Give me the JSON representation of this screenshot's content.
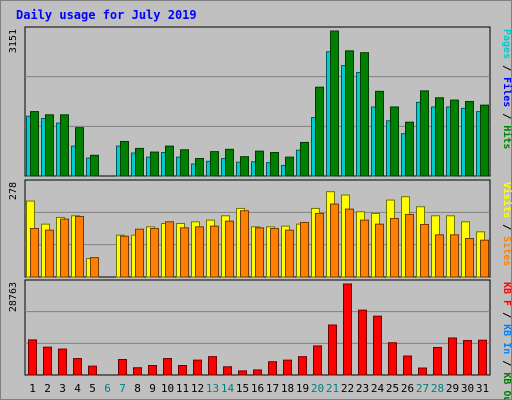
{
  "title": "Daily usage for July 2019",
  "chart_data": [
    {
      "type": "bar",
      "panel": "top",
      "ymax_label": "3151",
      "ylim": [
        0,
        3151
      ],
      "categories": [
        "1",
        "2",
        "3",
        "4",
        "5",
        "6",
        "7",
        "8",
        "9",
        "10",
        "11",
        "12",
        "13",
        "14",
        "15",
        "16",
        "17",
        "18",
        "19",
        "20",
        "21",
        "22",
        "23",
        "24",
        "25",
        "26",
        "27",
        "28",
        "29",
        "30",
        "31"
      ],
      "series": [
        {
          "name": "Pages",
          "color": "#00cccc",
          "values": [
            1300,
            1250,
            1150,
            650,
            390,
            null,
            650,
            500,
            410,
            510,
            410,
            260,
            320,
            380,
            300,
            310,
            290,
            230,
            560,
            1270,
            2700,
            2400,
            2250,
            1500,
            1200,
            920,
            1600,
            1500,
            1500,
            1470,
            1400
          ]
        },
        {
          "name": "Files",
          "color": "#0000ff",
          "values": [
            null,
            null,
            null,
            null,
            null,
            null,
            null,
            null,
            null,
            null,
            null,
            null,
            null,
            null,
            null,
            null,
            null,
            null,
            null,
            null,
            null,
            null,
            null,
            null,
            null,
            null,
            null,
            null,
            null,
            null,
            null
          ]
        },
        {
          "name": "Hits",
          "color": "#008000",
          "values": [
            1400,
            1330,
            1330,
            1050,
            450,
            null,
            750,
            600,
            520,
            650,
            570,
            380,
            530,
            580,
            420,
            540,
            510,
            410,
            730,
            1930,
            3151,
            2720,
            2680,
            1840,
            1500,
            1170,
            1850,
            1700,
            1650,
            1620,
            1540
          ]
        }
      ],
      "legend": [
        "Pages",
        "/",
        "Files",
        "/",
        "Hits"
      ],
      "legend_colors": [
        "#00cccc",
        "#000000",
        "#0000ff",
        "#000000",
        "#008000"
      ]
    },
    {
      "type": "bar",
      "panel": "middle",
      "ymax_label": "278",
      "ylim": [
        0,
        278
      ],
      "series": [
        {
          "name": "Visits",
          "color": "#ffff00",
          "values": [
            227,
            158,
            178,
            183,
            55,
            null,
            125,
            125,
            150,
            160,
            160,
            165,
            170,
            183,
            205,
            150,
            150,
            152,
            158,
            205,
            255,
            245,
            195,
            190,
            230,
            240,
            210,
            183,
            183,
            165,
            135
          ]
        },
        {
          "name": "Sites",
          "color": "#ff8000",
          "values": [
            145,
            140,
            173,
            181,
            58,
            null,
            122,
            143,
            145,
            165,
            147,
            150,
            152,
            167,
            198,
            147,
            145,
            140,
            163,
            190,
            218,
            203,
            170,
            158,
            175,
            187,
            157,
            126,
            126,
            115,
            110
          ]
        }
      ],
      "legend": [
        "Visits",
        "/",
        "Sites"
      ],
      "legend_colors": [
        "#ffff00",
        "#000000",
        "#ff8000"
      ]
    },
    {
      "type": "bar",
      "panel": "bottom",
      "ymax_label": "28763",
      "ylim": [
        0,
        28763
      ],
      "series": [
        {
          "name": "KB F",
          "color": "#ff0000",
          "values": [
            11100,
            8800,
            8200,
            5200,
            2800,
            null,
            4900,
            2300,
            3000,
            5200,
            3000,
            4700,
            5800,
            2600,
            1300,
            1600,
            4200,
            4700,
            5800,
            9200,
            15800,
            28763,
            20500,
            18600,
            10200,
            6000,
            2200,
            8700,
            11700,
            10900,
            11000
          ]
        }
      ],
      "legend": [
        "KB F",
        "/",
        "KB In",
        "/",
        "KB Out"
      ],
      "legend_colors": [
        "#ff0000",
        "#000000",
        "#0080ff",
        "#000000",
        "#008000"
      ]
    }
  ],
  "day_colors": {
    "weekday": "#000000",
    "weekend": "#008080"
  },
  "weekend_days": [
    "6",
    "7",
    "13",
    "14",
    "20",
    "21",
    "27",
    "28"
  ]
}
